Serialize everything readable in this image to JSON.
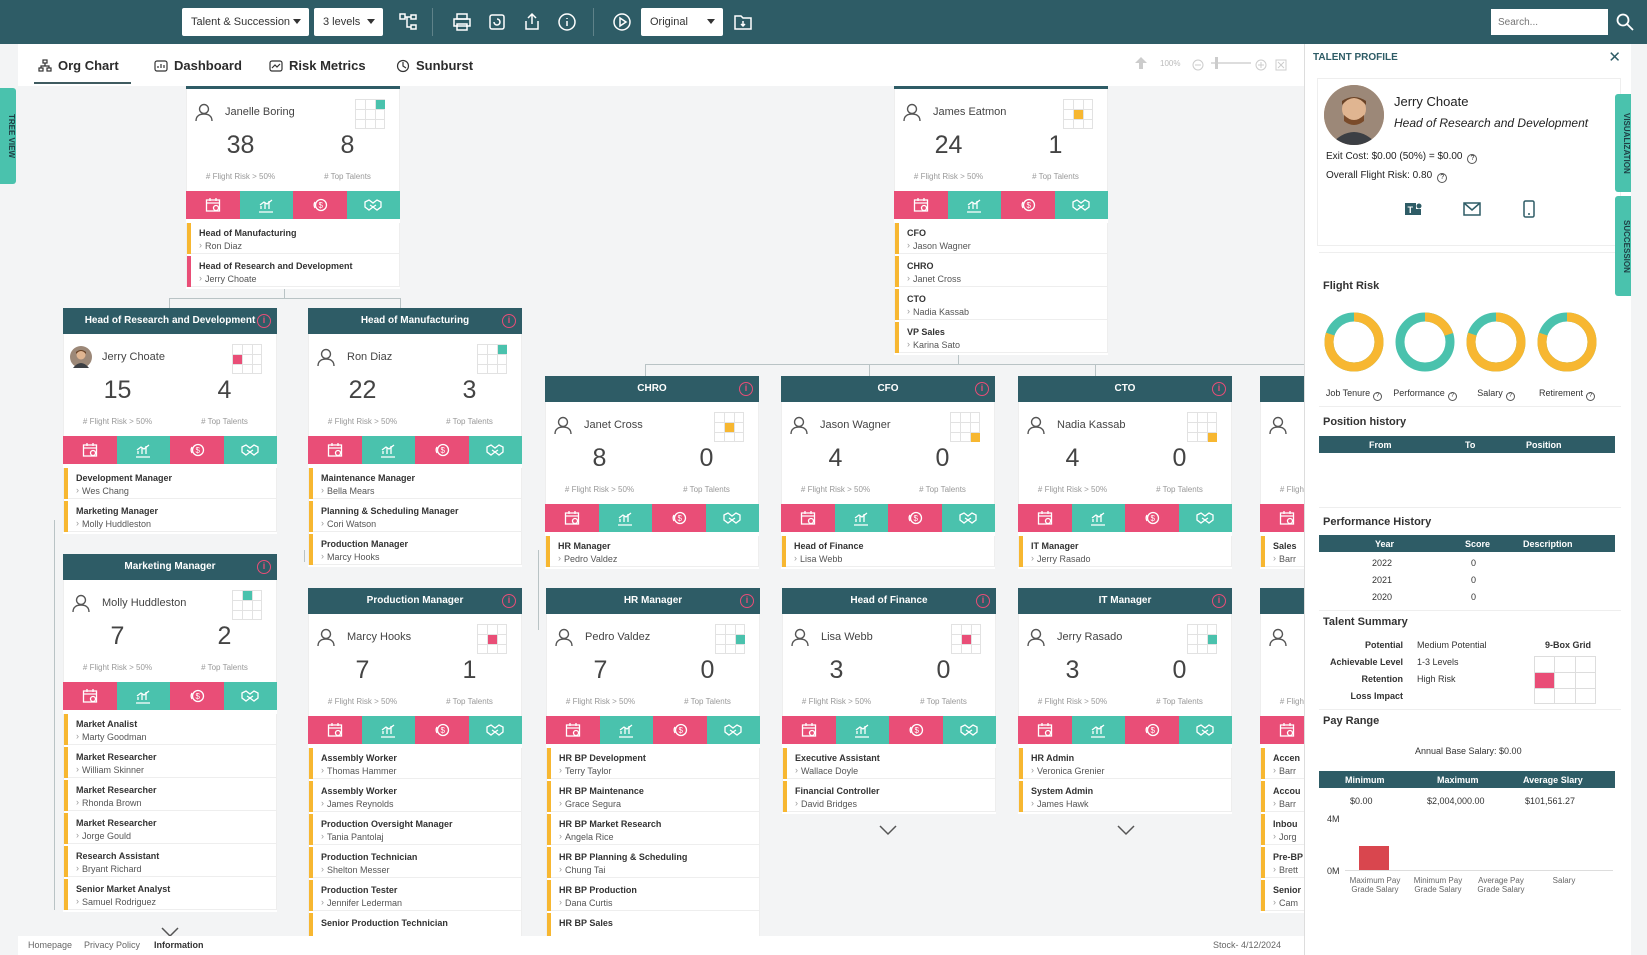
{
  "toolbar": {
    "view_select": "Talent & Succession",
    "levels_select": "3 levels",
    "mode_select": "Original",
    "search_placeholder": "Search..."
  },
  "left_tab": "TREE VIEW",
  "right_tabs": [
    "VISUALIZATION",
    "SUCCESSION"
  ],
  "tabs": [
    {
      "label": "Org Chart"
    },
    {
      "label": "Dashboard"
    },
    {
      "label": "Risk Metrics"
    },
    {
      "label": "Sunburst"
    }
  ],
  "zoom": "100%",
  "stat_labels": {
    "flight": "# Flight Risk > 50%",
    "top": "# Top Talents"
  },
  "nodes": [
    {
      "title": "",
      "name": "Janelle Boring",
      "flight": "38",
      "top": "8",
      "subs": [
        {
          "t": "Head of Manufacturing",
          "p": "Ron Diaz"
        },
        {
          "t": "Head of Research and Development",
          "p": "Jerry Choate"
        }
      ]
    },
    {
      "title": "",
      "name": "James Eatmon",
      "flight": "24",
      "top": "1",
      "subs": [
        {
          "t": "CFO",
          "p": "Jason Wagner"
        },
        {
          "t": "CHRO",
          "p": "Janet Cross"
        },
        {
          "t": "CTO",
          "p": "Nadia Kassab"
        },
        {
          "t": "VP Sales",
          "p": "Karina Sato"
        }
      ]
    },
    {
      "title": "Head of Research and Development",
      "name": "Jerry Choate",
      "flight": "15",
      "top": "4",
      "subs": [
        {
          "t": "Development Manager",
          "p": "Wes Chang"
        },
        {
          "t": "Marketing Manager",
          "p": "Molly Huddleston"
        }
      ]
    },
    {
      "title": "Head of Manufacturing",
      "name": "Ron Diaz",
      "flight": "22",
      "top": "3",
      "subs": [
        {
          "t": "Maintenance Manager",
          "p": "Bella Mears"
        },
        {
          "t": "Planning & Scheduling Manager",
          "p": "Cori Watson"
        },
        {
          "t": "Production Manager",
          "p": "Marcy Hooks"
        }
      ]
    },
    {
      "title": "CHRO",
      "name": "Janet Cross",
      "flight": "8",
      "top": "0",
      "subs": [
        {
          "t": "HR Manager",
          "p": "Pedro Valdez"
        }
      ]
    },
    {
      "title": "CFO",
      "name": "Jason Wagner",
      "flight": "4",
      "top": "0",
      "subs": [
        {
          "t": "Head of Finance",
          "p": "Lisa Webb"
        }
      ]
    },
    {
      "title": "CTO",
      "name": "Nadia Kassab",
      "flight": "4",
      "top": "0",
      "subs": [
        {
          "t": "IT Manager",
          "p": "Jerry Rasado"
        }
      ]
    },
    {
      "title": "",
      "name": "",
      "flight": "",
      "top": "",
      "subs": [
        {
          "t": "Sales",
          "p": "Barr"
        }
      ]
    },
    {
      "title": "Marketing Manager",
      "name": "Molly Huddleston",
      "flight": "7",
      "top": "2",
      "subs": [
        {
          "t": "Market Analist",
          "p": "Marty Goodman"
        },
        {
          "t": "Market Researcher",
          "p": "William Skinner"
        },
        {
          "t": "Market Researcher",
          "p": "Rhonda Brown"
        },
        {
          "t": "Market Researcher",
          "p": "Jorge Gould"
        },
        {
          "t": "Research Assistant",
          "p": "Bryant Richard"
        },
        {
          "t": "Senior Market Analyst",
          "p": "Samuel Rodriguez"
        }
      ]
    },
    {
      "title": "Production Manager",
      "name": "Marcy Hooks",
      "flight": "7",
      "top": "1",
      "subs": [
        {
          "t": "Assembly Worker",
          "p": "Thomas Hammer"
        },
        {
          "t": "Assembly Worker",
          "p": "James Reynolds"
        },
        {
          "t": "Production Oversight Manager",
          "p": "Tania Pantolaj"
        },
        {
          "t": "Production Technician",
          "p": "Shelton Messer"
        },
        {
          "t": "Production Tester",
          "p": "Jennifer Lederman"
        },
        {
          "t": "Senior Production Technician",
          "p": ""
        }
      ]
    },
    {
      "title": "HR Manager",
      "name": "Pedro Valdez",
      "flight": "7",
      "top": "0",
      "subs": [
        {
          "t": "HR BP Development",
          "p": "Terry Taylor"
        },
        {
          "t": "HR BP Maintenance",
          "p": "Grace Segura"
        },
        {
          "t": "HR BP Market Research",
          "p": "Angela Rice"
        },
        {
          "t": "HR BP Planning & Scheduling",
          "p": "Chung Tai"
        },
        {
          "t": "HR BP Production",
          "p": "Dana Curtis"
        },
        {
          "t": "HR BP Sales",
          "p": ""
        }
      ]
    },
    {
      "title": "Head of Finance",
      "name": "Lisa Webb",
      "flight": "3",
      "top": "0",
      "subs": [
        {
          "t": "Executive Assistant",
          "p": "Wallace Doyle"
        },
        {
          "t": "Financial Controller",
          "p": "David Bridges"
        }
      ]
    },
    {
      "title": "IT Manager",
      "name": "Jerry Rasado",
      "flight": "3",
      "top": "0",
      "subs": [
        {
          "t": "HR Admin",
          "p": "Veronica Grenier"
        },
        {
          "t": "System Admin",
          "p": "James Hawk"
        }
      ]
    },
    {
      "title": "",
      "name": "",
      "flight": "",
      "top": "",
      "subs": [
        {
          "t": "Accen",
          "p": "Barr"
        },
        {
          "t": "Accou",
          "p": "Barr"
        },
        {
          "t": "Inbou",
          "p": "Jorg"
        },
        {
          "t": "Pre-BP",
          "p": "Brett"
        },
        {
          "t": "Senior",
          "p": "Cam"
        }
      ]
    }
  ],
  "footer": {
    "home": "Homepage",
    "privacy": "Privacy Policy",
    "info": "Information",
    "stock": "Stock- 4/12/2024"
  },
  "panel": {
    "header": "TALENT PROFILE",
    "name": "Jerry Choate",
    "title": "Head of Research and Development",
    "exit_cost": "Exit Cost:  $0.00    (50%) = $0.00",
    "overall": "Overall Flight Risk:  0.80",
    "flight_risk_title": "Flight Risk",
    "flight_risk": [
      {
        "label": "Job Tenure",
        "value": 0.8
      },
      {
        "label": "Performance",
        "value": 0.2
      },
      {
        "label": "Salary",
        "value": 0.8
      },
      {
        "label": "Retirement",
        "value": 0.8
      }
    ],
    "position_history": {
      "title": "Position history",
      "cols": [
        "From",
        "To",
        "Position"
      ]
    },
    "performance_history": {
      "title": "Performance History",
      "cols": [
        "Year",
        "Score",
        "Description"
      ],
      "rows": [
        {
          "year": "2022",
          "score": "0"
        },
        {
          "year": "2021",
          "score": "0"
        },
        {
          "year": "2020",
          "score": "0"
        }
      ]
    },
    "talent_summary": {
      "title": "Talent Summary",
      "grid_title": "9-Box Grid",
      "rows": [
        {
          "k": "Potential",
          "v": "Medium Potential"
        },
        {
          "k": "Achievable Level",
          "v": "1-3 Levels"
        },
        {
          "k": "Retention",
          "v": "High Risk"
        },
        {
          "k": "Loss Impact",
          "v": ""
        }
      ]
    },
    "pay_range": {
      "title": "Pay Range",
      "annual": "Annual Base Salary: $0.00",
      "cols": [
        "Minimum",
        "Maximum",
        "Average Slary"
      ],
      "values": [
        "$0.00",
        "$2,004,000.00",
        "$101,561.27"
      ],
      "y_ticks": [
        "4M",
        "0M"
      ],
      "bars": [
        "Maximum Pay Grade Salary",
        "Minimum Pay Grade Salary",
        "Average Pay Grade Salary",
        "Salary"
      ],
      "bar_values": [
        1.0,
        0,
        0,
        0
      ]
    }
  },
  "colors": {
    "teal_dark": "#2e5c66",
    "pink": "#e94e77",
    "green": "#4ac2ad",
    "yellow": "#f7b731"
  }
}
